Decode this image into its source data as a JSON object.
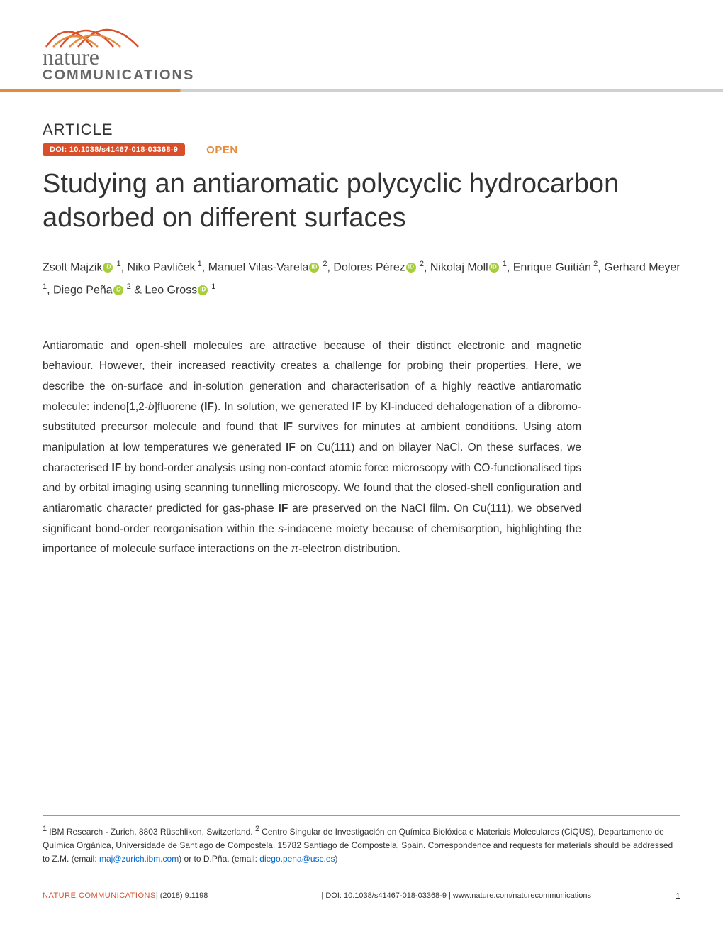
{
  "colors": {
    "accent_orange": "#e58c3c",
    "doi_red": "#d94f2a",
    "orcid_green": "#a6ce39",
    "link_blue": "#0066cc",
    "text": "#333333",
    "rule_gray": "#999999",
    "banner_gray": "#d0d0d0"
  },
  "banner": {
    "logo_line1": "nature",
    "logo_line2": "COMMUNICATIONS"
  },
  "header": {
    "article_label": "ARTICLE",
    "doi_label": "DOI: 10.1038/s41467-018-03368-9",
    "open_label": "OPEN"
  },
  "title": "Studying an antiaromatic polycyclic hydrocarbon adsorbed on different surfaces",
  "authors": [
    {
      "name": "Zsolt Majzik",
      "orcid": true,
      "affil": "1",
      "sep": ", "
    },
    {
      "name": "Niko Pavliček",
      "orcid": false,
      "affil": "1",
      "sep": ", "
    },
    {
      "name": "Manuel Vilas-Varela",
      "orcid": true,
      "affil": "2",
      "sep": ", "
    },
    {
      "name": "Dolores Pérez",
      "orcid": true,
      "affil": "2",
      "sep": ", "
    },
    {
      "name": "Nikolaj Moll",
      "orcid": true,
      "affil": "1",
      "sep": ", "
    },
    {
      "name": "Enrique Guitián",
      "orcid": false,
      "affil": "2",
      "sep": ", "
    },
    {
      "name": "Gerhard Meyer",
      "orcid": false,
      "affil": "1",
      "sep": ", "
    },
    {
      "name": "Diego Peña",
      "orcid": true,
      "affil": "2",
      "sep": " & "
    },
    {
      "name": "Leo Gross",
      "orcid": true,
      "affil": "1",
      "sep": ""
    }
  ],
  "abstract": {
    "p1a": "Antiaromatic and open-shell molecules are attractive because of their distinct electronic and magnetic behaviour. However, their increased reactivity creates a challenge for probing their properties. Here, we describe the on-surface and in-solution generation and characterisation of a highly reactive antiaromatic molecule: indeno[1,2-",
    "p1b": "b",
    "p1c": "]fluorene (",
    "p1d": "IF",
    "p1e": "). In solution, we generated ",
    "p1f": "IF",
    "p1g": " by KI-induced dehalogenation of a dibromo-substituted precursor molecule and found that ",
    "p1h": "IF",
    "p1i": " survives for minutes at ambient conditions. Using atom manipulation at low temperatures we generated ",
    "p1j": "IF",
    "p1k": " on Cu(111) and on bilayer NaCl. On these surfaces, we characterised ",
    "p1l": "IF",
    "p1m": " by bond-order analysis using non-contact atomic force microscopy with CO-functionalised tips and by orbital imaging using scanning tunnelling microscopy. We found that the closed-shell configuration and antiaromatic character predicted for gas-phase ",
    "p1n": "IF",
    "p1o": " are preserved on the NaCl film. On Cu(111), we observed significant bond-order reorganisation within the ",
    "p1p": "s",
    "p1q": "-indacene moiety because of chemisorption, highlighting the importance of molecule surface interactions on the ",
    "p1r": "π",
    "p1s": "-electron distribution."
  },
  "affiliations": {
    "text1": "IBM Research - Zurich, 8803 Rüschlikon, Switzerland. ",
    "text2": "Centro Singular de Investigación en Química Biolóxica e Materiais Moleculares (CiQUS), Departamento de Química Orgánica, Universidade de Santiago de Compostela, 15782 Santiago de Compostela, Spain. Correspondence and requests for materials should be addressed to Z.M. (email: ",
    "email1": "maj@zurich.ibm.com",
    "text3": ") or to D.Pña. (email: ",
    "email2": "diego.pena@usc.es",
    "text4": ")"
  },
  "footer": {
    "journal": "NATURE COMMUNICATIONS",
    "citation": " |   (2018) 9:1198 ",
    "doi": " | DOI: 10.1038/s41467-018-03368-9 | www.nature.com/naturecommunications",
    "page": "1"
  }
}
